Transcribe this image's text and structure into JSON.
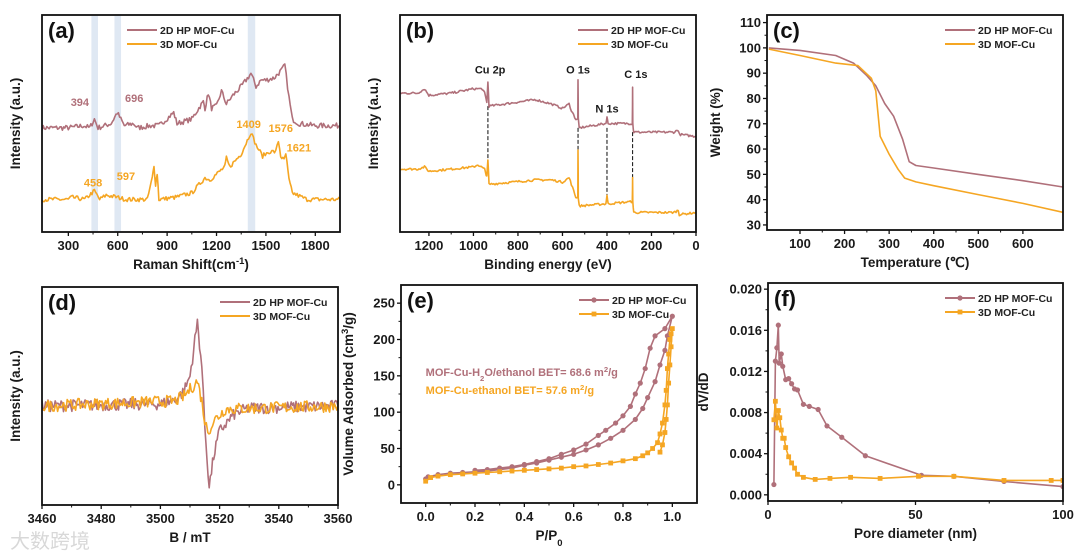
{
  "colors": {
    "hp2d": "#b0707a",
    "mof3d": "#f5a623",
    "band": "#dfe8f3"
  },
  "watermark": "大数跨境",
  "chart_data": [
    {
      "panel_label": "(a)",
      "type": "line",
      "xlabel": [
        {
          "t": "Raman Shift(cm"
        },
        {
          "t": "-1",
          "sup": true
        },
        {
          "t": ")"
        }
      ],
      "ylabel": [
        {
          "t": "Intensity (a.u.)"
        }
      ],
      "xlim": [
        140,
        1950
      ],
      "ylim": [
        0,
        100
      ],
      "xticks": [
        "300",
        "600",
        "900",
        "1200",
        "1500",
        "1800"
      ],
      "yticks": [],
      "legend_position": "top-center",
      "bands": [
        [
          440,
          480
        ],
        [
          580,
          620
        ],
        [
          1390,
          1435
        ]
      ],
      "series": [
        {
          "name": "2D HP MOF-Cu",
          "color": "#b0707a",
          "noise": 1.2,
          "x": [
            140,
            300,
            394,
            430,
            458,
            480,
            560,
            597,
            640,
            696,
            720,
            800,
            850,
            940,
            960,
            1050,
            1100,
            1120,
            1130,
            1150,
            1170,
            1200,
            1230,
            1260,
            1300,
            1350,
            1409,
            1440,
            1470,
            1500,
            1550,
            1600,
            1615,
            1640,
            1660,
            1700,
            1800,
            1950
          ],
          "y": [
            48,
            48,
            49,
            48,
            52,
            48,
            50,
            55,
            49,
            50,
            48,
            49,
            49,
            55,
            50,
            52,
            58,
            60,
            57,
            64,
            57,
            58,
            65,
            59,
            63,
            67,
            73,
            67,
            70,
            70,
            71,
            75,
            77,
            62,
            52,
            50,
            49,
            49
          ]
        },
        {
          "name": "3D MOF-Cu",
          "color": "#f5a623",
          "noise": 1.0,
          "x": [
            140,
            300,
            320,
            400,
            458,
            490,
            530,
            597,
            650,
            780,
            810,
            820,
            830,
            840,
            850,
            950,
            1050,
            1130,
            1160,
            1250,
            1260,
            1280,
            1350,
            1409,
            1440,
            1480,
            1520,
            1560,
            1576,
            1590,
            1610,
            1621,
            1640,
            1660,
            1750,
            1950
          ],
          "y": [
            15,
            15,
            16,
            15,
            19,
            15,
            17,
            16,
            15,
            15,
            25,
            30,
            22,
            27,
            15,
            16,
            18,
            25,
            24,
            30,
            34,
            30,
            36,
            46,
            40,
            35,
            37,
            37,
            42,
            35,
            33,
            36,
            24,
            18,
            15,
            15
          ]
        }
      ],
      "annotations": [
        {
          "text": "394",
          "x": 370,
          "y": 58,
          "color": "#b0707a"
        },
        {
          "text": "696",
          "x": 700,
          "y": 60,
          "color": "#b0707a"
        },
        {
          "text": "1409",
          "x": 1395,
          "y": 48,
          "color": "#f5a623"
        },
        {
          "text": "1576",
          "x": 1590,
          "y": 46,
          "color": "#f5a623"
        },
        {
          "text": "1621",
          "x": 1700,
          "y": 37,
          "color": "#f5a623"
        },
        {
          "text": "458",
          "x": 450,
          "y": 21,
          "color": "#f5a623"
        },
        {
          "text": "597",
          "x": 650,
          "y": 24,
          "color": "#f5a623"
        }
      ]
    },
    {
      "panel_label": "(b)",
      "type": "line",
      "xlabel": [
        {
          "t": "Binding energy (eV)"
        }
      ],
      "ylabel": [
        {
          "t": "Intensity (a.u.)"
        }
      ],
      "xlim": [
        1330,
        0
      ],
      "ylim": [
        0,
        100
      ],
      "xticks": [
        "1200",
        "1000",
        "800",
        "600",
        "400",
        "200",
        "0"
      ],
      "yticks": [],
      "legend_position": "top-right",
      "series": [
        {
          "name": "2D HP MOF-Cu",
          "color": "#b0707a",
          "noise": 0.5,
          "x": [
            1330,
            1250,
            1220,
            1200,
            1100,
            1000,
            960,
            950,
            945,
            940,
            935,
            930,
            720,
            650,
            600,
            570,
            560,
            540,
            531,
            530,
            529,
            525,
            405,
            400,
            395,
            290,
            286,
            285,
            284,
            280,
            100,
            80,
            75,
            0
          ],
          "y": [
            64,
            64,
            66,
            63,
            64,
            66,
            66,
            64,
            62,
            60,
            69,
            58,
            61,
            59,
            57,
            59,
            56,
            52,
            52,
            70,
            52,
            48,
            50,
            53,
            50,
            50,
            50,
            67,
            50,
            46,
            46,
            47,
            45,
            44
          ]
        },
        {
          "name": "3D MOF-Cu",
          "color": "#f5a623",
          "noise": 0.5,
          "x": [
            1330,
            1250,
            1220,
            1200,
            1100,
            1000,
            980,
            950,
            945,
            940,
            935,
            930,
            720,
            650,
            600,
            570,
            560,
            540,
            531,
            530,
            529,
            525,
            405,
            400,
            395,
            290,
            286,
            285,
            284,
            280,
            100,
            80,
            75,
            0
          ],
          "y": [
            29,
            29,
            30,
            28,
            29,
            30,
            31,
            29,
            27,
            26,
            33,
            22,
            24,
            24,
            23,
            25,
            22,
            16,
            16,
            38,
            16,
            12,
            13,
            17,
            13,
            14,
            14,
            25,
            14,
            9,
            9,
            10,
            8,
            9
          ]
        }
      ],
      "dashed_lines": [
        {
          "x": 935,
          "y_from": 58,
          "y_to": 30
        },
        {
          "x": 530,
          "y_from": 48,
          "y_to": 38
        },
        {
          "x": 400,
          "y_from": 48,
          "y_to": 17
        },
        {
          "x": 285,
          "y_from": 46,
          "y_to": 25
        }
      ],
      "annotations": [
        {
          "text": "Cu 2p",
          "x": 925,
          "y": 73,
          "color": "#1a1a1a"
        },
        {
          "text": "O 1s",
          "x": 530,
          "y": 73,
          "color": "#1a1a1a"
        },
        {
          "text": "N 1s",
          "x": 400,
          "y": 55,
          "color": "#1a1a1a"
        },
        {
          "text": "C 1s",
          "x": 270,
          "y": 71,
          "color": "#1a1a1a"
        }
      ]
    },
    {
      "panel_label": "(c)",
      "type": "line",
      "xlabel": [
        {
          "t": "Temperature (℃)"
        }
      ],
      "ylabel": [
        {
          "t": "Weight (%)"
        }
      ],
      "xlim": [
        26,
        690
      ],
      "ylim": [
        28,
        113
      ],
      "xticks": [
        "100",
        "200",
        "300",
        "400",
        "500",
        "600"
      ],
      "yticks": [
        "30",
        "40",
        "50",
        "60",
        "70",
        "80",
        "90",
        "100",
        "110"
      ],
      "legend_position": "top-right",
      "series": [
        {
          "name": "2D HP MOF-Cu",
          "color": "#b0707a",
          "x": [
            30,
            100,
            180,
            220,
            250,
            270,
            290,
            310,
            330,
            345,
            360,
            400,
            500,
            600,
            690
          ],
          "y": [
            100,
            99,
            97,
            94,
            89,
            85,
            78,
            73,
            64,
            55,
            53.5,
            52.5,
            50,
            47.5,
            45
          ]
        },
        {
          "name": "3D MOF-Cu",
          "color": "#f5a623",
          "x": [
            30,
            100,
            180,
            230,
            260,
            270,
            280,
            300,
            320,
            335,
            360,
            400,
            500,
            600,
            690
          ],
          "y": [
            99.5,
            97,
            94,
            93,
            88,
            83,
            65,
            58,
            52,
            48.5,
            47,
            45.5,
            42,
            38.5,
            35
          ]
        }
      ]
    },
    {
      "panel_label": "(d)",
      "type": "line",
      "xlabel": [
        {
          "t": "B / mT"
        }
      ],
      "ylabel": [
        {
          "t": "Intensity (a.u.)"
        }
      ],
      "xlim": [
        3460,
        3560
      ],
      "ylim": [
        -99,
        119
      ],
      "xticks": [
        "3460",
        "3480",
        "3500",
        "3520",
        "3540",
        "3560"
      ],
      "yticks": [],
      "legend_position": "top-right",
      "series": [
        {
          "name": "2D HP MOF-Cu",
          "color": "#b0707a",
          "noise": 6,
          "x": [
            3460,
            3500,
            3505,
            3508,
            3510,
            3512.5,
            3514,
            3515,
            3516.5,
            3518,
            3520,
            3525,
            3530,
            3560
          ],
          "y": [
            0,
            2,
            6,
            15,
            30,
            84,
            40,
            -20,
            -81,
            -50,
            -25,
            -8,
            -2,
            0
          ]
        },
        {
          "name": "3D MOF-Cu",
          "color": "#f5a623",
          "noise": 6,
          "x": [
            3460,
            3505,
            3508,
            3512.5,
            3514,
            3515,
            3516,
            3518,
            3522,
            3560
          ],
          "y": [
            0,
            5,
            10,
            25,
            5,
            -15,
            -26,
            -15,
            -3,
            0
          ]
        }
      ]
    },
    {
      "panel_label": "(e)",
      "type": "scatter-line",
      "xlabel": [
        {
          "t": "P/P"
        },
        {
          "t": "0",
          "sub": true
        }
      ],
      "ylabel": [
        {
          "t": "Volume Adsorbed (cm"
        },
        {
          "t": "3",
          "sup": true
        },
        {
          "t": "/g)"
        }
      ],
      "xlim": [
        -0.1,
        1.1
      ],
      "ylim": [
        -25,
        275
      ],
      "xticks": [
        "0.0",
        "0.2",
        "0.4",
        "0.6",
        "0.8",
        "1.0"
      ],
      "yticks": [
        "0",
        "50",
        "100",
        "150",
        "200",
        "250"
      ],
      "legend_position": "top-right",
      "series": [
        {
          "name": "2D HP MOF-Cu",
          "color": "#b0707a",
          "marker": "circle",
          "x": [
            0,
            0.01,
            0.05,
            0.1,
            0.15,
            0.2,
            0.25,
            0.3,
            0.35,
            0.4,
            0.45,
            0.5,
            0.55,
            0.6,
            0.65,
            0.7,
            0.75,
            0.8,
            0.85,
            0.88,
            0.9,
            0.93,
            0.95,
            0.97,
            0.98,
            1.0,
            0.97,
            0.93,
            0.91,
            0.89,
            0.87,
            0.85,
            0.83,
            0.8,
            0.77,
            0.73,
            0.7,
            0.65,
            0.6,
            0.55,
            0.5,
            0.45,
            0.4,
            0.35,
            0.3,
            0.25,
            0.2
          ],
          "y": [
            8,
            11,
            14,
            16,
            17,
            18,
            19,
            21,
            23,
            27,
            30,
            34,
            38,
            42,
            48,
            55,
            64,
            75,
            90,
            105,
            120,
            142,
            165,
            185,
            205,
            232,
            215,
            205,
            188,
            160,
            140,
            125,
            108,
            95,
            85,
            75,
            68,
            56,
            48,
            42,
            36,
            32,
            28,
            25,
            23,
            21,
            20
          ]
        },
        {
          "name": "3D MOF-Cu",
          "color": "#f5a623",
          "marker": "square",
          "x": [
            0,
            0.02,
            0.05,
            0.1,
            0.15,
            0.2,
            0.25,
            0.3,
            0.35,
            0.4,
            0.45,
            0.5,
            0.55,
            0.6,
            0.65,
            0.7,
            0.75,
            0.8,
            0.85,
            0.88,
            0.9,
            0.92,
            0.94,
            0.95,
            0.96,
            0.97,
            0.975,
            0.98,
            0.985,
            0.99,
            0.995,
            1.0,
            0.995,
            0.99,
            0.985,
            0.98,
            0.975,
            0.97,
            0.96,
            0.95
          ],
          "y": [
            5,
            10,
            12,
            14,
            15,
            16,
            17,
            18,
            19,
            20,
            21,
            22,
            23,
            25,
            26,
            28,
            30,
            33,
            36,
            40,
            44,
            50,
            58,
            70,
            85,
            110,
            130,
            160,
            180,
            200,
            208,
            215,
            190,
            165,
            140,
            110,
            90,
            72,
            55,
            45
          ]
        }
      ],
      "annotations": [
        {
          "parts": [
            {
              "t": "MOF-Cu-H"
            },
            {
              "t": "2",
              "sub": true
            },
            {
              "t": "O/ethanol BET= 68.6 m"
            },
            {
              "t": "2",
              "sup": true
            },
            {
              "t": "/g"
            }
          ],
          "x": 0.0,
          "y": 150,
          "color": "#b0707a"
        },
        {
          "parts": [
            {
              "t": "MOF-Cu-ethanol BET= 57.6 m"
            },
            {
              "t": "2",
              "sup": true
            },
            {
              "t": "/g"
            }
          ],
          "x": 0.0,
          "y": 125,
          "color": "#f5a623"
        }
      ]
    },
    {
      "panel_label": "(f)",
      "type": "scatter-line",
      "xlabel": [
        {
          "t": "Pore diameter (nm)"
        }
      ],
      "ylabel": [
        {
          "t": "dV/dD"
        }
      ],
      "xlim": [
        0,
        100
      ],
      "ylim": [
        -0.0006,
        0.0206
      ],
      "xticks": [
        "0",
        "50",
        "100"
      ],
      "yticks": [
        "0.000",
        "0.004",
        "0.008",
        "0.012",
        "0.016",
        "0.020"
      ],
      "legend_position": "top-right",
      "series": [
        {
          "name": "2D HP MOF-Cu",
          "color": "#b0707a",
          "marker": "circle",
          "x": [
            2,
            2.5,
            3,
            3.5,
            3.8,
            4.5,
            5,
            6,
            7,
            8,
            9,
            10,
            12,
            14,
            17,
            20,
            25,
            33,
            52,
            63,
            80,
            100
          ],
          "y": [
            0.001,
            0.013,
            0.0143,
            0.0165,
            0.0128,
            0.0137,
            0.0125,
            0.0112,
            0.0113,
            0.0108,
            0.0103,
            0.0102,
            0.0088,
            0.0086,
            0.0083,
            0.0067,
            0.0056,
            0.0038,
            0.0019,
            0.0018,
            0.0013,
            0.0008
          ]
        },
        {
          "name": "3D MOF-Cu",
          "color": "#f5a623",
          "marker": "square",
          "x": [
            2,
            2.5,
            3,
            3.5,
            4,
            4.5,
            5,
            5.5,
            6,
            7,
            8,
            9,
            10,
            12,
            16,
            21,
            28,
            38,
            51,
            63,
            80,
            96,
            100
          ],
          "y": [
            0.0073,
            0.0091,
            0.0065,
            0.0082,
            0.0075,
            0.0063,
            0.0055,
            0.0055,
            0.0046,
            0.0037,
            0.0031,
            0.0026,
            0.002,
            0.0017,
            0.0015,
            0.0016,
            0.0017,
            0.0016,
            0.0018,
            0.0018,
            0.0014,
            0.0014,
            0.0014
          ]
        }
      ]
    }
  ]
}
